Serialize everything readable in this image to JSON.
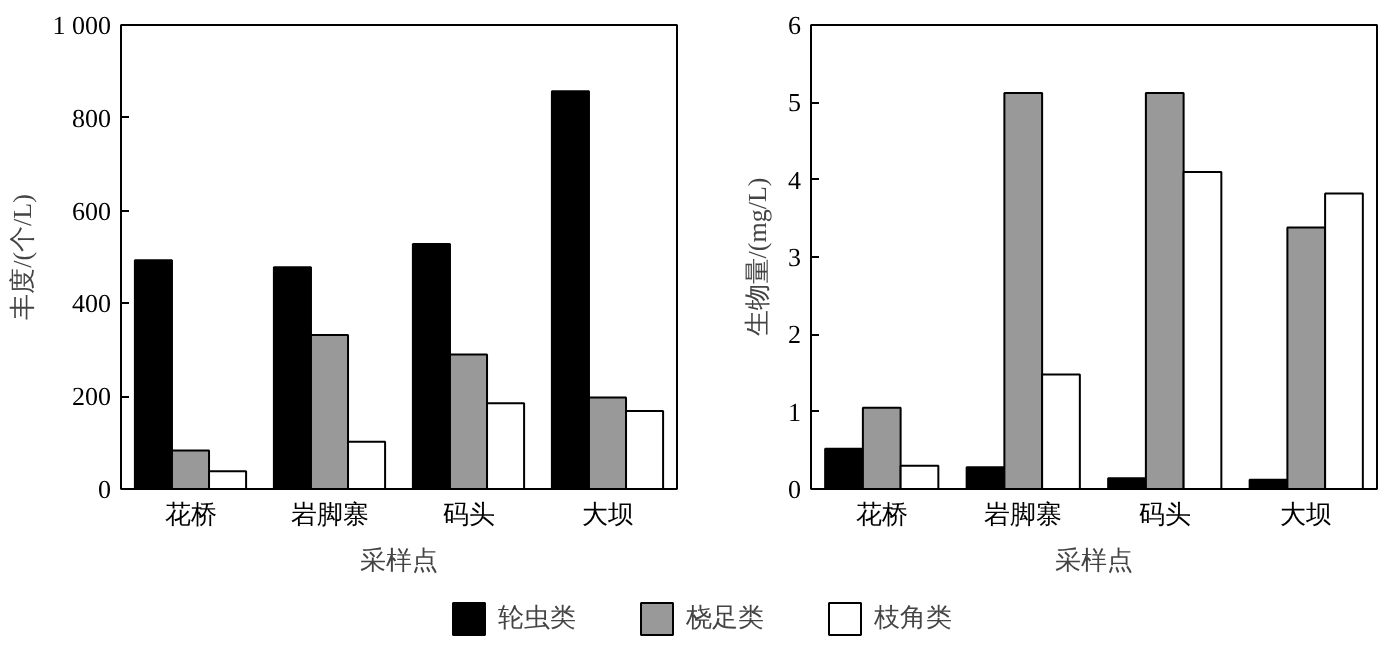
{
  "chart_data": [
    {
      "type": "bar",
      "categories": [
        "花桥",
        "岩脚寨",
        "码头",
        "大坝"
      ],
      "xlabel": "采样点",
      "ylabel": "丰度/(个/L)",
      "ylim": [
        0,
        1000
      ],
      "yticks": [
        0,
        200,
        400,
        600,
        800,
        {
          "value": 1000,
          "label": "1 000"
        }
      ],
      "grid": false,
      "legend": "bottom",
      "series": [
        {
          "name": "轮虫类",
          "color": "#000000",
          "values": [
            493,
            478,
            528,
            857
          ]
        },
        {
          "name": "桡足类",
          "color": "#999999",
          "values": [
            83,
            332,
            290,
            197
          ]
        },
        {
          "name": "枝角类",
          "color": "#ffffff",
          "values": [
            38,
            102,
            185,
            168
          ]
        }
      ]
    },
    {
      "type": "bar",
      "categories": [
        "花桥",
        "岩脚寨",
        "码头",
        "大坝"
      ],
      "xlabel": "采样点",
      "ylabel": "生物量/(mg/L)",
      "ylim": [
        0,
        6
      ],
      "yticks": [
        0,
        1,
        2,
        3,
        4,
        5,
        6
      ],
      "grid": false,
      "series": [
        {
          "color": "#000000",
          "values": [
            0.52,
            0.28,
            0.14,
            0.12
          ]
        },
        {
          "color": "#999999",
          "values": [
            1.05,
            5.12,
            5.12,
            3.38
          ]
        },
        {
          "color": "#ffffff",
          "values": [
            0.3,
            1.48,
            4.1,
            3.82
          ]
        }
      ]
    }
  ]
}
